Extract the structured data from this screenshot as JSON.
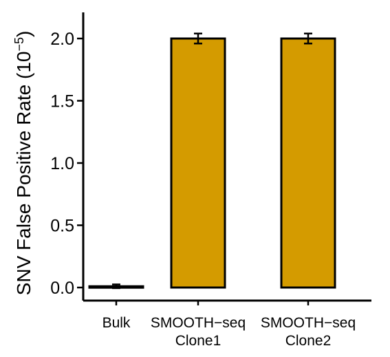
{
  "chart_data": {
    "type": "bar",
    "categories": [
      [
        "Bulk"
      ],
      [
        "SMOOTH−seq",
        "Clone1"
      ],
      [
        "SMOOTH−seq",
        "Clone2"
      ]
    ],
    "values": [
      0.01,
      2.0,
      2.0
    ],
    "errors": [
      0.015,
      0.04,
      0.04
    ],
    "ylabel_main": "SNV False Positive Rate (10",
    "ylabel_exponent": "−5",
    "ylabel_close": ")",
    "yticks": [
      0.0,
      0.5,
      1.0,
      1.5,
      2.0
    ],
    "ytick_labels": [
      "0.0",
      "0.5",
      "1.0",
      "1.5",
      "2.0"
    ],
    "ylim": [
      -0.09,
      2.2
    ],
    "grid": false,
    "colors": {
      "bar_fill": "#d49b00",
      "bar_stroke": "#000000",
      "error_bar": "#000000"
    }
  }
}
